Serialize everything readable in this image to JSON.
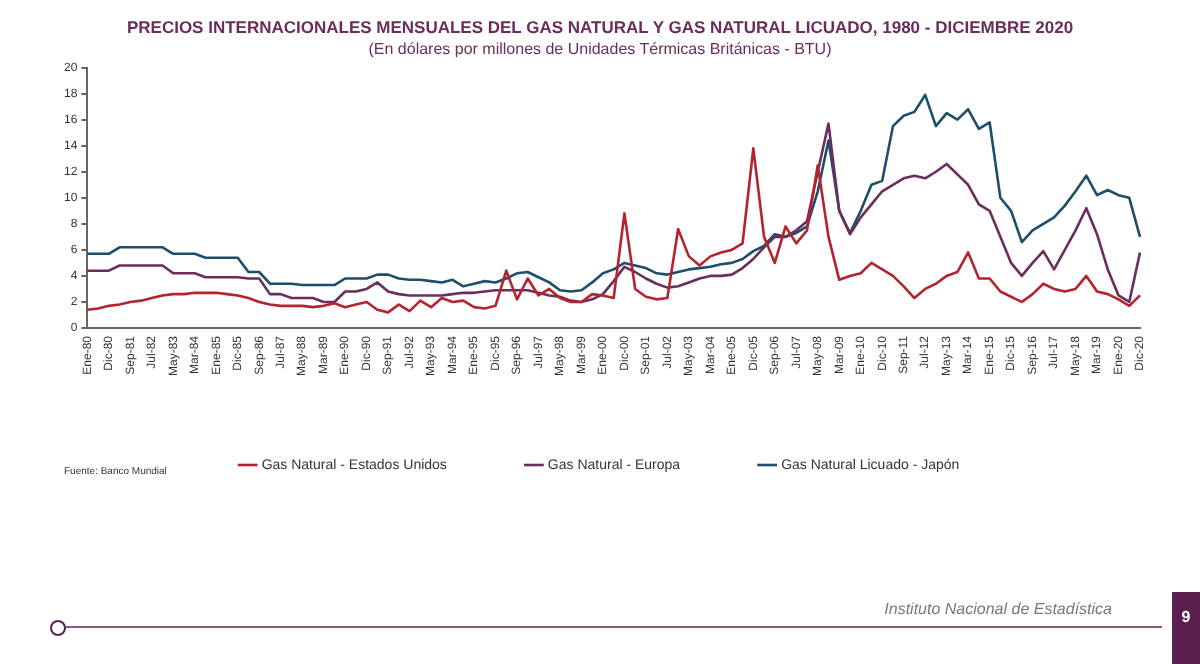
{
  "chart_data": {
    "type": "line",
    "title": "PRECIOS INTERNACIONALES MENSUALES DEL GAS NATURAL Y GAS NATURAL LICUADO, 1980 - DICIEMBRE 2020",
    "subtitle": "(En dólares por millones de Unidades Térmicas Británicas - BTU)",
    "categories": [
      "Ene-80",
      null,
      "Dic-80",
      null,
      "Sep-81",
      null,
      "Jul-82",
      null,
      "May-83",
      null,
      "Mar-84",
      null,
      "Ene-85",
      null,
      "Dic-85",
      null,
      "Sep-86",
      null,
      "Jul-87",
      null,
      "May-88",
      null,
      "Mar-89",
      null,
      "Ene-90",
      null,
      "Dic-90",
      null,
      "Sep-91",
      null,
      "Jul-92",
      null,
      "May-93",
      null,
      "Mar-94",
      null,
      "Ene-95",
      null,
      "Dic-95",
      null,
      "Sep-96",
      null,
      "Jul-97",
      null,
      "May-98",
      null,
      "Mar-99",
      null,
      "Ene-00",
      null,
      "Dic-00",
      null,
      "Sep-01",
      null,
      "Jul-02",
      null,
      "May-03",
      null,
      "Mar-04",
      null,
      "Ene-05",
      null,
      "Dic-05",
      null,
      "Sep-06",
      null,
      "Jul-07",
      null,
      "May-08",
      null,
      "Mar-09",
      null,
      "Ene-10",
      null,
      "Dic-10",
      null,
      "Sep-11",
      null,
      "Jul-12",
      null,
      "May-13",
      null,
      "Mar-14",
      null,
      "Ene-15",
      null,
      "Dic-15",
      null,
      "Sep-16",
      null,
      "Jul-17",
      null,
      "May-18",
      null,
      "Mar-19",
      null,
      "Ene-20",
      null,
      "Dic-20"
    ],
    "series": [
      {
        "name": "Gas Natural - Estados Unidos",
        "color": "#b5232f",
        "values": [
          1.4,
          1.5,
          1.7,
          1.8,
          2.0,
          2.1,
          2.3,
          2.5,
          2.6,
          2.6,
          2.7,
          2.7,
          2.7,
          2.6,
          2.5,
          2.3,
          2.0,
          1.8,
          1.7,
          1.7,
          1.7,
          1.6,
          1.7,
          1.9,
          1.6,
          1.8,
          2.0,
          1.4,
          1.2,
          1.8,
          1.3,
          2.1,
          1.6,
          2.3,
          2.0,
          2.1,
          1.6,
          1.5,
          1.7,
          4.4,
          2.2,
          3.8,
          2.5,
          3.0,
          2.3,
          2.0,
          2.0,
          2.6,
          2.5,
          2.3,
          8.8,
          3.0,
          2.4,
          2.2,
          2.3,
          7.6,
          5.5,
          4.8,
          5.5,
          5.8,
          6.0,
          6.5,
          13.8,
          7.0,
          5.0,
          7.8,
          6.5,
          7.5,
          12.5,
          7.0,
          3.7,
          4.0,
          4.2,
          5.0,
          4.5,
          4.0,
          3.2,
          2.3,
          3.0,
          3.4,
          4.0,
          4.3,
          5.8,
          3.8,
          3.8,
          2.8,
          2.4,
          2.0,
          2.6,
          3.4,
          3.0,
          2.8,
          3.0,
          4.0,
          2.8,
          2.6,
          2.2,
          1.7,
          2.5
        ]
      },
      {
        "name": "Gas Natural - Europa",
        "color": "#6b2d5c",
        "values": [
          4.4,
          4.4,
          4.4,
          4.8,
          4.8,
          4.8,
          4.8,
          4.8,
          4.2,
          4.2,
          4.2,
          3.9,
          3.9,
          3.9,
          3.9,
          3.8,
          3.8,
          2.6,
          2.6,
          2.3,
          2.3,
          2.3,
          2.0,
          2.0,
          2.8,
          2.8,
          3.0,
          3.5,
          2.8,
          2.6,
          2.5,
          2.5,
          2.5,
          2.5,
          2.6,
          2.7,
          2.7,
          2.8,
          2.9,
          2.9,
          2.9,
          2.9,
          2.7,
          2.5,
          2.4,
          2.1,
          2.0,
          2.2,
          2.6,
          3.6,
          4.7,
          4.3,
          3.8,
          3.4,
          3.1,
          3.2,
          3.5,
          3.8,
          4.0,
          4.0,
          4.1,
          4.6,
          5.3,
          6.2,
          7.0,
          7.0,
          7.5,
          8.2,
          12.0,
          15.7,
          9.0,
          7.2,
          8.5,
          9.5,
          10.5,
          11.0,
          11.5,
          11.7,
          11.5,
          12.0,
          12.6,
          11.8,
          11.0,
          9.5,
          9.0,
          7.0,
          5.0,
          4.0,
          5.0,
          5.9,
          4.5,
          6.0,
          7.5,
          9.2,
          7.2,
          4.5,
          2.5,
          2.0,
          5.8
        ]
      },
      {
        "name": "Gas Natural Licuado - Japón",
        "color": "#1f4e6b",
        "values": [
          5.7,
          5.7,
          5.7,
          6.2,
          6.2,
          6.2,
          6.2,
          6.2,
          5.7,
          5.7,
          5.7,
          5.4,
          5.4,
          5.4,
          5.4,
          4.3,
          4.3,
          3.4,
          3.4,
          3.4,
          3.3,
          3.3,
          3.3,
          3.3,
          3.8,
          3.8,
          3.8,
          4.1,
          4.1,
          3.8,
          3.7,
          3.7,
          3.6,
          3.5,
          3.7,
          3.2,
          3.4,
          3.6,
          3.5,
          3.8,
          4.2,
          4.3,
          3.9,
          3.5,
          2.9,
          2.8,
          2.9,
          3.5,
          4.2,
          4.5,
          5.0,
          4.8,
          4.6,
          4.2,
          4.1,
          4.3,
          4.5,
          4.6,
          4.7,
          4.9,
          5.0,
          5.3,
          5.9,
          6.3,
          7.2,
          7.0,
          7.3,
          7.8,
          10.5,
          14.4,
          9.0,
          7.3,
          9.0,
          11.0,
          11.3,
          15.5,
          16.3,
          16.6,
          17.9,
          15.5,
          16.5,
          16.0,
          16.8,
          15.3,
          15.8,
          10.0,
          9.0,
          6.6,
          7.5,
          8.0,
          8.5,
          9.4,
          10.5,
          11.7,
          10.2,
          10.6,
          10.2,
          10.0,
          7.0
        ]
      }
    ],
    "ylim": [
      0,
      20
    ],
    "yticks": [
      0,
      2,
      4,
      6,
      8,
      10,
      12,
      14,
      16,
      18,
      20
    ],
    "grid": false,
    "legend": "bottom",
    "marker": "none",
    "line_style": "solid",
    "annotations": [
      "Fuente: Banco Mundial",
      "Instituto Nacional de Estadística",
      "9"
    ]
  }
}
